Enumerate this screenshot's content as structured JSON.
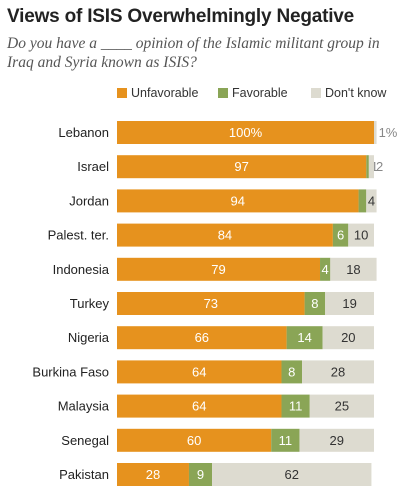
{
  "chart_data": {
    "type": "bar",
    "title": "Views of ISIS Overwhelmingly Negative",
    "subtitle": "Do you have a ____ opinion of the Islamic militant group in Iraq and Syria known as ISIS?",
    "stacked": true,
    "orientation": "horizontal",
    "categories": [
      "Lebanon",
      "Israel",
      "Jordan",
      "Palest. ter.",
      "Indonesia",
      "Turkey",
      "Nigeria",
      "Burkina Faso",
      "Malaysia",
      "Senegal",
      "Pakistan"
    ],
    "series": [
      {
        "name": "Unfavorable",
        "values": [
          100,
          97,
          94,
          84,
          79,
          73,
          66,
          64,
          64,
          60,
          28
        ],
        "labels": [
          "100%",
          "97",
          "94",
          "84",
          "79",
          "73",
          "66",
          "64",
          "64",
          "60",
          "28"
        ],
        "color": "#e6921e",
        "label_color": "#ffffff"
      },
      {
        "name": "Favorable",
        "values": [
          0,
          1,
          3,
          6,
          4,
          8,
          14,
          8,
          11,
          11,
          9
        ],
        "labels": [
          "",
          "1",
          "3",
          "6",
          "4",
          "8",
          "14",
          "8",
          "11",
          "11",
          "9"
        ],
        "color": "#8aa556",
        "label_color": "#ffffff"
      },
      {
        "name": "Don't know",
        "values": [
          1,
          2,
          4,
          10,
          18,
          19,
          20,
          28,
          25,
          29,
          62
        ],
        "labels": [
          "1%",
          "2",
          "4",
          "10",
          "18",
          "19",
          "20",
          "28",
          "25",
          "29",
          "62"
        ],
        "color": "#dddbd0",
        "label_color": "#333333"
      }
    ],
    "xlim": [
      0,
      100
    ],
    "legend": "top-left"
  }
}
